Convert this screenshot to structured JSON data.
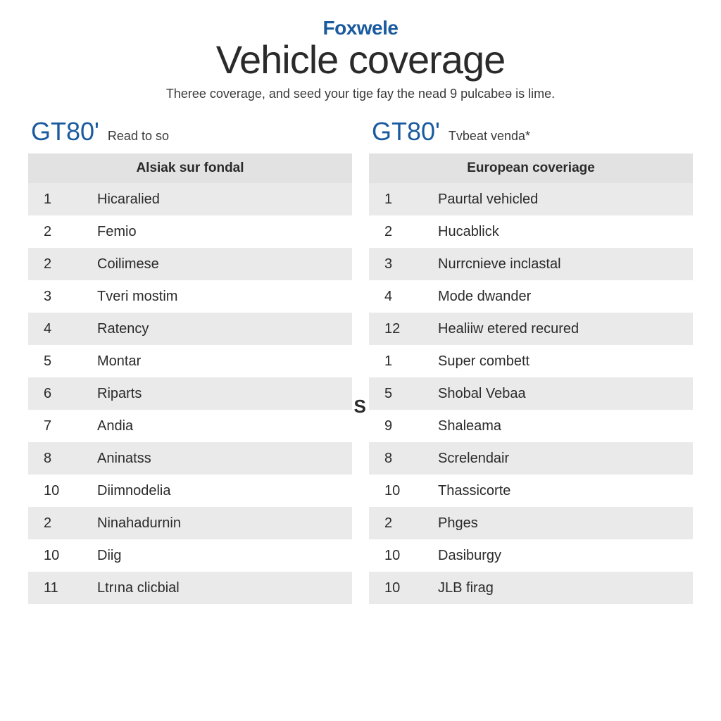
{
  "header": {
    "brand": "Foxwele",
    "title": "Vehicle coverage",
    "subtitle": "Theree coverage, and seed your tige fay the nead 9 pulcabeə is lime."
  },
  "left": {
    "model": "GT80'",
    "model_sub": "Read to so",
    "table_header": "Alsiak sur fondal",
    "rows": [
      {
        "n": "1",
        "label": "Hicaralied"
      },
      {
        "n": "2",
        "label": "Femio"
      },
      {
        "n": "2",
        "label": "Coilimese"
      },
      {
        "n": "3",
        "label": "Tveri mostim"
      },
      {
        "n": "4",
        "label": "Ratency"
      },
      {
        "n": "5",
        "label": "Montar"
      },
      {
        "n": "6",
        "label": "Riparts"
      },
      {
        "n": "7",
        "label": "Andia"
      },
      {
        "n": "8",
        "label": "Aninatss"
      },
      {
        "n": "10",
        "label": "Diimnodelia"
      },
      {
        "n": "2",
        "label": "Ninahadurnin"
      },
      {
        "n": "10",
        "label": "Diig"
      },
      {
        "n": "11",
        "label": "Ltrına clicbial"
      }
    ]
  },
  "right": {
    "model": "GT80'",
    "model_sub": "Tvbeat venda*",
    "table_header": "European coveriage",
    "rows": [
      {
        "n": "1",
        "label": "Paurtal vehicled"
      },
      {
        "n": "2",
        "label": "Hucablick"
      },
      {
        "n": "3",
        "label": "Nurrcnieve inclastal"
      },
      {
        "n": "4",
        "label": "Mode dwander"
      },
      {
        "n": "12",
        "label": "Healiiw etered recured"
      },
      {
        "n": "1",
        "label": "Super combett"
      },
      {
        "n": "5",
        "label": "Shobal Vebaa"
      },
      {
        "n": "9",
        "label": "Shaleama"
      },
      {
        "n": "8",
        "label": "Screlendair"
      },
      {
        "n": "10",
        "label": "Thassicorte"
      },
      {
        "n": "2",
        "label": "Phges"
      },
      {
        "n": "10",
        "label": "Dasiburgy"
      },
      {
        "n": "10",
        "label": "JLB firag"
      }
    ]
  },
  "divider_letter": "S",
  "style": {
    "brand_color": "#1a5a9e",
    "model_color": "#1a5a9e",
    "text_color": "#2a2a2a",
    "row_alt_bg": "#eaeaea",
    "row_bg": "#ffffff",
    "header_bg": "#e2e2e2",
    "title_fontsize": 56,
    "brand_fontsize": 28,
    "model_fontsize": 36,
    "row_fontsize": 20
  }
}
